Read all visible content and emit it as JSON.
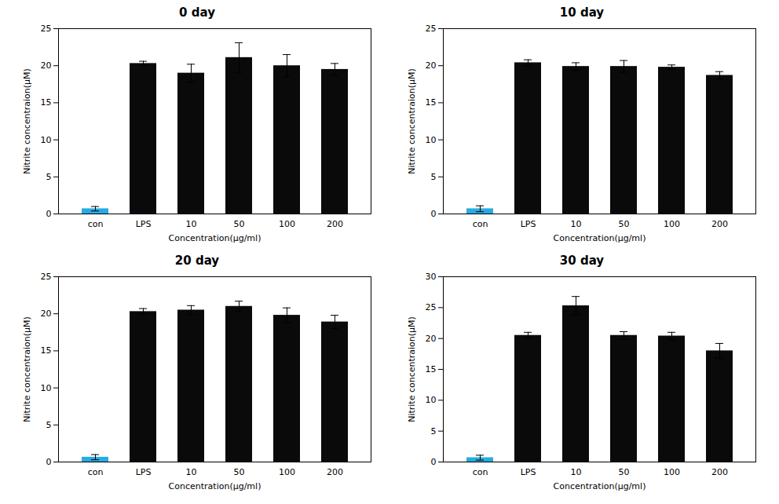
{
  "chart_data": [
    {
      "type": "bar",
      "title": "0 day",
      "categories": [
        "con",
        "LPS",
        "10",
        "50",
        "100",
        "200"
      ],
      "values": [
        0.7,
        20.3,
        19.0,
        21.1,
        20.0,
        19.5
      ],
      "errors": [
        0.3,
        0.3,
        1.2,
        2.0,
        1.5,
        0.8
      ],
      "colors": [
        "#29ABE2",
        "#0a0a0a",
        "#0a0a0a",
        "#0a0a0a",
        "#0a0a0a",
        "#0a0a0a"
      ],
      "xlabel": "Concentration(μg/ml)",
      "ylabel": "Nitrite concentraion(μM)",
      "ylim": [
        0,
        25
      ],
      "yticks": [
        0,
        5,
        10,
        15,
        20,
        25
      ],
      "grid": false
    },
    {
      "type": "bar",
      "title": "10 day",
      "categories": [
        "con",
        "LPS",
        "10",
        "50",
        "100",
        "200"
      ],
      "values": [
        0.7,
        20.4,
        19.9,
        19.9,
        19.8,
        18.7
      ],
      "errors": [
        0.4,
        0.4,
        0.5,
        0.8,
        0.3,
        0.5
      ],
      "colors": [
        "#29ABE2",
        "#0a0a0a",
        "#0a0a0a",
        "#0a0a0a",
        "#0a0a0a",
        "#0a0a0a"
      ],
      "xlabel": "Concentration(μg/ml)",
      "ylabel": "Nitrite concentraion(μM)",
      "ylim": [
        0,
        25
      ],
      "yticks": [
        0,
        5,
        10,
        15,
        20,
        25
      ],
      "grid": false
    },
    {
      "type": "bar",
      "title": "20 day",
      "categories": [
        "con",
        "LPS",
        "10",
        "50",
        "100",
        "200"
      ],
      "values": [
        0.65,
        20.3,
        20.5,
        21.0,
        19.8,
        18.9
      ],
      "errors": [
        0.35,
        0.4,
        0.6,
        0.7,
        1.0,
        0.9
      ],
      "colors": [
        "#29ABE2",
        "#0a0a0a",
        "#0a0a0a",
        "#0a0a0a",
        "#0a0a0a",
        "#0a0a0a"
      ],
      "xlabel": "Concentration(μg/ml)",
      "ylabel": "Nitrite concentraion(μM)",
      "ylim": [
        0,
        25
      ],
      "yticks": [
        0,
        5,
        10,
        15,
        20,
        25
      ],
      "grid": false
    },
    {
      "type": "bar",
      "title": "30 day",
      "categories": [
        "con",
        "LPS",
        "10",
        "50",
        "100",
        "200"
      ],
      "values": [
        0.7,
        20.5,
        25.3,
        20.5,
        20.4,
        18.0
      ],
      "errors": [
        0.4,
        0.5,
        1.5,
        0.6,
        0.6,
        1.2
      ],
      "colors": [
        "#29ABE2",
        "#0a0a0a",
        "#0a0a0a",
        "#0a0a0a",
        "#0a0a0a",
        "#0a0a0a"
      ],
      "xlabel": "Concentration(μg/ml)",
      "ylabel": "Nitrite concentraion(μM)",
      "ylim": [
        0,
        30
      ],
      "yticks": [
        0,
        5,
        10,
        15,
        20,
        25,
        30
      ],
      "grid": false
    }
  ]
}
